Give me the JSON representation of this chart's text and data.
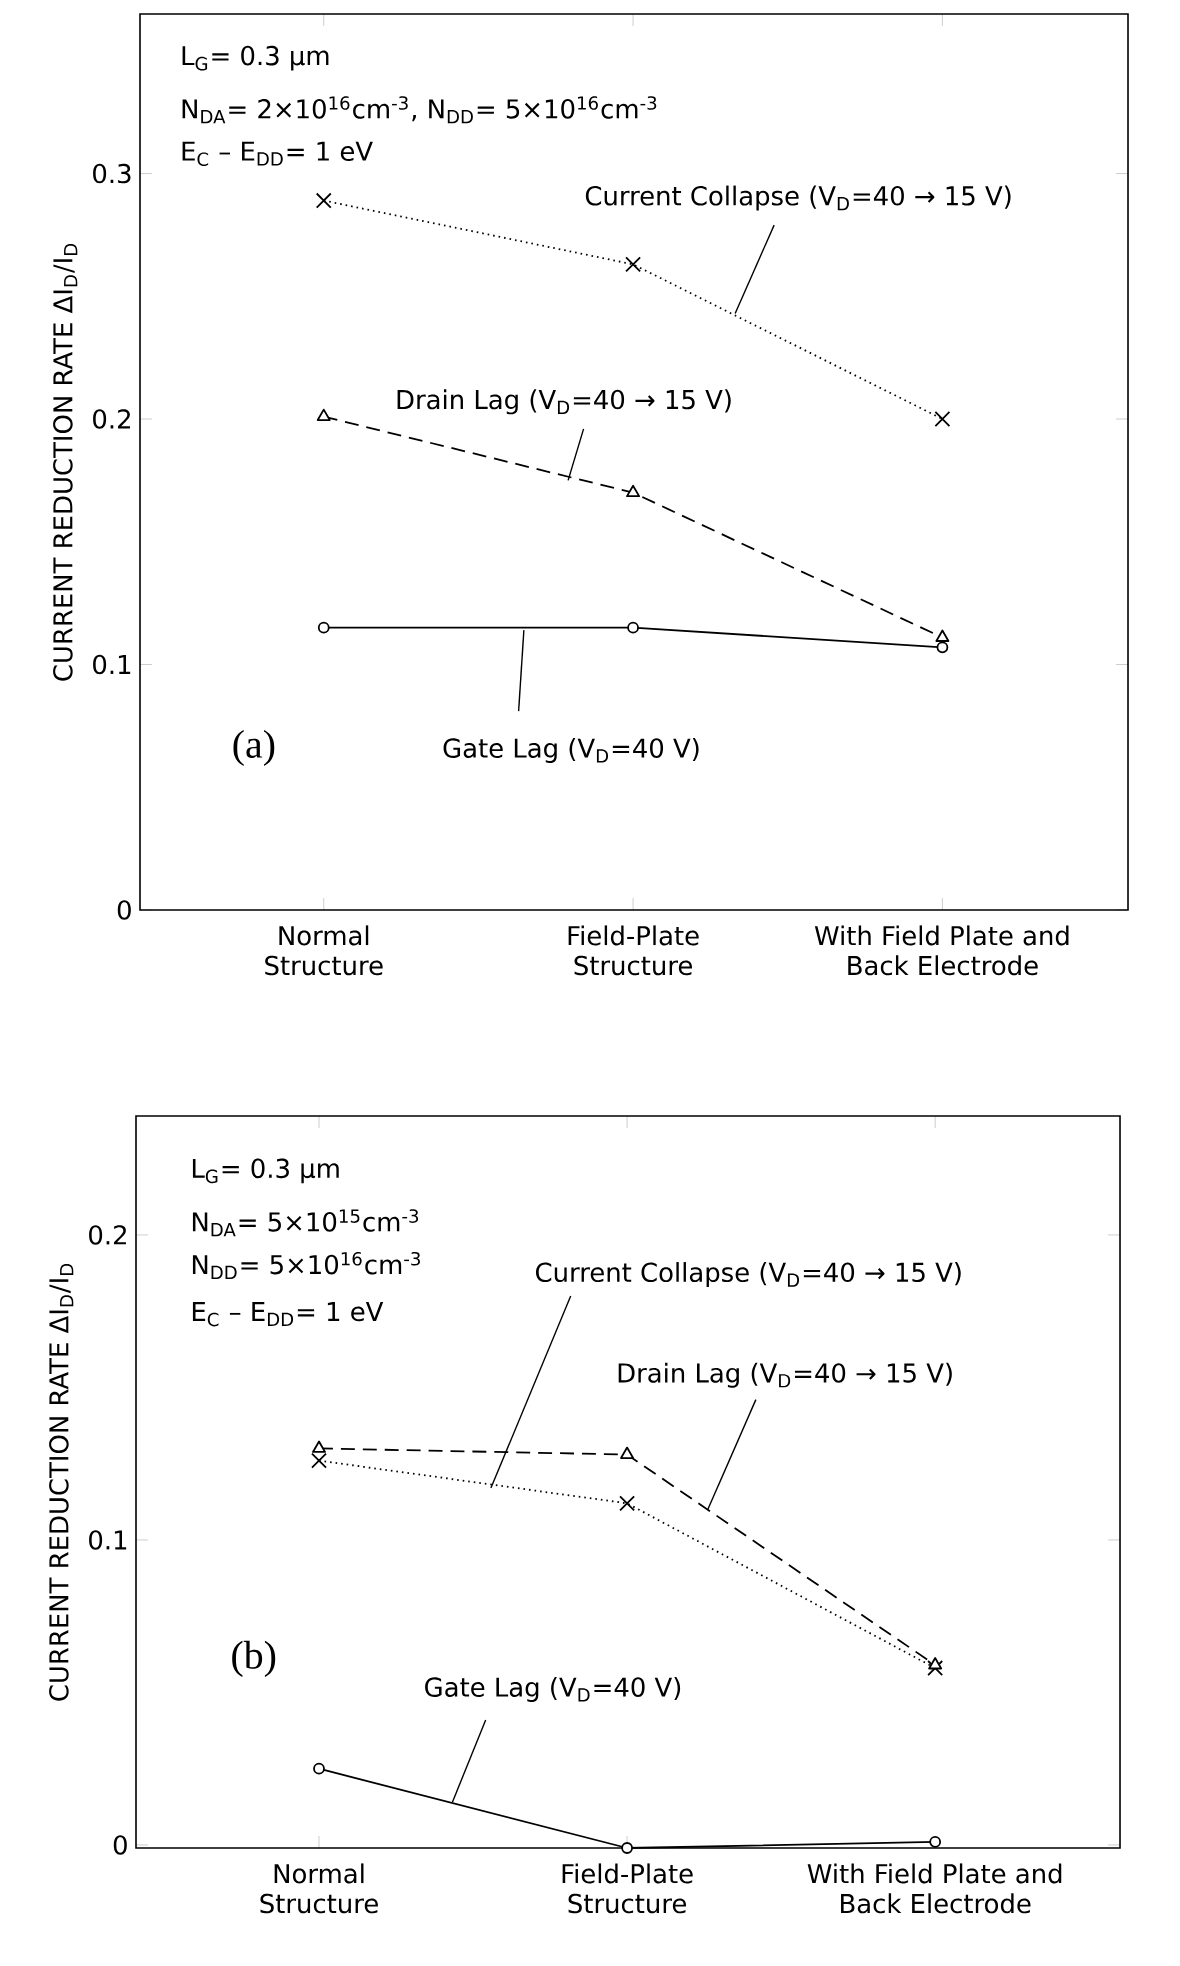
{
  "chart_data": [
    {
      "type": "line",
      "ylabel": "CURRENT REDUCTION RATE      ΔI$_{D}$/I$_{D}$",
      "categories": [
        "Normal Structure",
        "Field-Plate Structure",
        "With Field Plate and Back Electrode"
      ],
      "series": [
        {
          "name": "Current Collapse (V$_{D}$=40 → 15 V)",
          "color": "#000000",
          "marker": "cross",
          "line_style": "dotted",
          "values": [
            0.289,
            0.263,
            0.2
          ]
        },
        {
          "name": "Drain Lag (V$_{D}$=40 → 15 V)",
          "color": "#000000",
          "marker": "triangle",
          "line_style": "dashed",
          "values": [
            0.201,
            0.17,
            0.111
          ]
        },
        {
          "name": "Gate Lag (V$_{D}$=40 V)",
          "color": "#000000",
          "marker": "circle",
          "line_style": "solid",
          "values": [
            0.115,
            0.115,
            0.107
          ]
        }
      ],
      "ylim": [
        0,
        0.365
      ],
      "yticks": [
        0,
        0.1,
        0.2,
        0.3
      ],
      "grid": false,
      "legend": false,
      "annotations": [
        "L$_{G}$= 0.3 μm",
        "N$_{DA}$= 2×10$^{16}$cm$^{-3}$, N$_{DD}$= 5×10$^{16}$cm$^{-3}$",
        "E$_{C}$ – E$_{DD}$= 1 eV",
        "(a)"
      ]
    },
    {
      "type": "line",
      "ylabel": "CURRENT REDUCTION RATE      ΔI$_{D}$/I$_{D}$",
      "categories": [
        "Normal Structure",
        "Field-Plate Structure",
        "With Field Plate and Back Electrode"
      ],
      "series": [
        {
          "name": "Current Collapse (V$_{D}$=40 → 15 V)",
          "color": "#000000",
          "marker": "cross",
          "line_style": "dotted",
          "values": [
            0.126,
            0.112,
            0.058
          ]
        },
        {
          "name": "Drain Lag (V$_{D}$=40 → 15 V)",
          "color": "#000000",
          "marker": "triangle",
          "line_style": "dashed",
          "values": [
            0.13,
            0.128,
            0.059
          ]
        },
        {
          "name": "Gate Lag (V$_{D}$=40 V)",
          "color": "#000000",
          "marker": "circle",
          "line_style": "solid",
          "values": [
            0.025,
            -0.001,
            0.001
          ]
        }
      ],
      "ylim": [
        -0.001,
        0.239
      ],
      "yticks": [
        0,
        0.1,
        0.2
      ],
      "grid": false,
      "legend": false,
      "annotations": [
        "L$_{G}$= 0.3 μm",
        "N$_{DA}$= 5×10$^{15}$cm$^{-3}$",
        "N$_{DD}$= 5×10$^{16}$cm$^{-3}$",
        "E$_{C}$ – E$_{DD}$= 1 eV",
        "(b)"
      ]
    }
  ]
}
